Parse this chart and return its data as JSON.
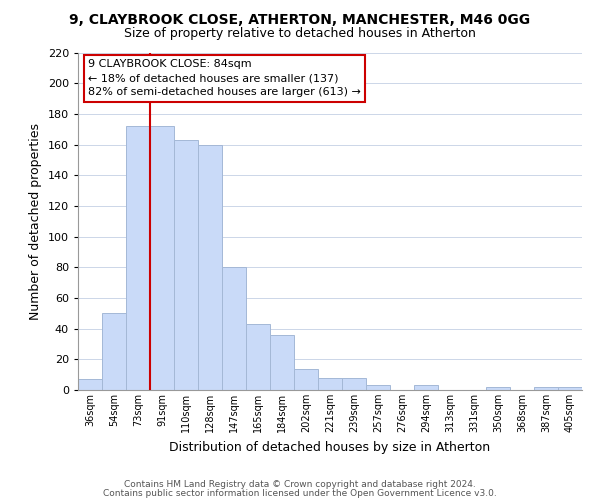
{
  "title": "9, CLAYBROOK CLOSE, ATHERTON, MANCHESTER, M46 0GG",
  "subtitle": "Size of property relative to detached houses in Atherton",
  "xlabel": "Distribution of detached houses by size in Atherton",
  "ylabel": "Number of detached properties",
  "bar_labels": [
    "36sqm",
    "54sqm",
    "73sqm",
    "91sqm",
    "110sqm",
    "128sqm",
    "147sqm",
    "165sqm",
    "184sqm",
    "202sqm",
    "221sqm",
    "239sqm",
    "257sqm",
    "276sqm",
    "294sqm",
    "313sqm",
    "331sqm",
    "350sqm",
    "368sqm",
    "387sqm",
    "405sqm"
  ],
  "bar_values": [
    7,
    50,
    172,
    172,
    163,
    160,
    80,
    43,
    36,
    14,
    8,
    8,
    3,
    0,
    3,
    0,
    0,
    2,
    0,
    2,
    2
  ],
  "bar_color": "#c9daf8",
  "bar_edge_color": "#a4b8d6",
  "highlight_line_color": "#cc0000",
  "highlight_line_index": 2,
  "annotation_line1": "9 CLAYBROOK CLOSE: 84sqm",
  "annotation_line2": "← 18% of detached houses are smaller (137)",
  "annotation_line3": "82% of semi-detached houses are larger (613) →",
  "annotation_box_color": "white",
  "annotation_box_edge_color": "#cc0000",
  "ylim": [
    0,
    220
  ],
  "yticks": [
    0,
    20,
    40,
    60,
    80,
    100,
    120,
    140,
    160,
    180,
    200,
    220
  ],
  "footer_line1": "Contains HM Land Registry data © Crown copyright and database right 2024.",
  "footer_line2": "Contains public sector information licensed under the Open Government Licence v3.0.",
  "background_color": "#ffffff",
  "grid_color": "#ccd6e8"
}
